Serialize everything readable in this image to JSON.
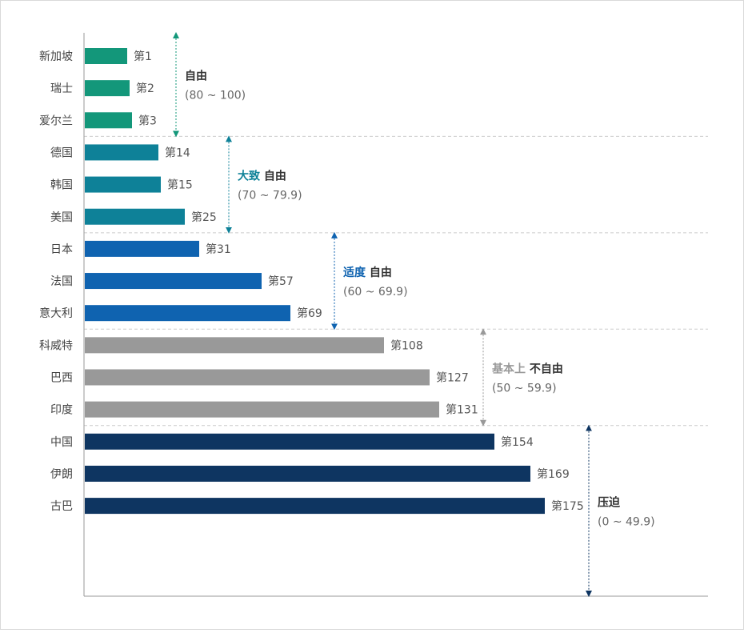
{
  "chart_data": {
    "type": "bar",
    "orientation": "horizontal",
    "title": "",
    "xlabel": "",
    "ylabel": "",
    "grid": false,
    "value_label_prefix": "第",
    "categories": [
      "新加坡",
      "瑞士",
      "爱尔兰",
      "德国",
      "韩国",
      "美国",
      "日本",
      "法国",
      "意大利",
      "科威特",
      "巴西",
      "印度",
      "中国",
      "伊朗",
      "古巴"
    ],
    "values": [
      1,
      2,
      3,
      14,
      15,
      25,
      31,
      57,
      69,
      108,
      127,
      131,
      154,
      169,
      175
    ],
    "labels": [
      "第1",
      "第2",
      "第3",
      "第14",
      "第15",
      "第25",
      "第31",
      "第57",
      "第69",
      "第108",
      "第127",
      "第131",
      "第154",
      "第169",
      "第175"
    ],
    "groups": [
      {
        "prefix": "",
        "name": "自由",
        "range": "(80 ~ 100)",
        "color": "#13977a",
        "prefix_color": "#333333",
        "start": 0,
        "end": 3
      },
      {
        "prefix": "大致",
        "name": "自由",
        "range": "(70 ~ 79.9)",
        "color": "#0e8198",
        "prefix_color": "#0e8198",
        "start": 3,
        "end": 6
      },
      {
        "prefix": "适度",
        "name": "自由",
        "range": "(60 ~ 69.9)",
        "color": "#0f63b0",
        "prefix_color": "#0f63b0",
        "start": 6,
        "end": 9
      },
      {
        "prefix": "基本上",
        "name": "不自由",
        "range": "(50 ~ 59.9)",
        "color": "#999999",
        "prefix_color": "#999999",
        "start": 9,
        "end": 12
      },
      {
        "prefix": "",
        "name": "压迫",
        "range": "(0 ~ 49.9)",
        "color": "#0e3561",
        "prefix_color": "#333333",
        "start": 12,
        "end": 15
      }
    ]
  }
}
